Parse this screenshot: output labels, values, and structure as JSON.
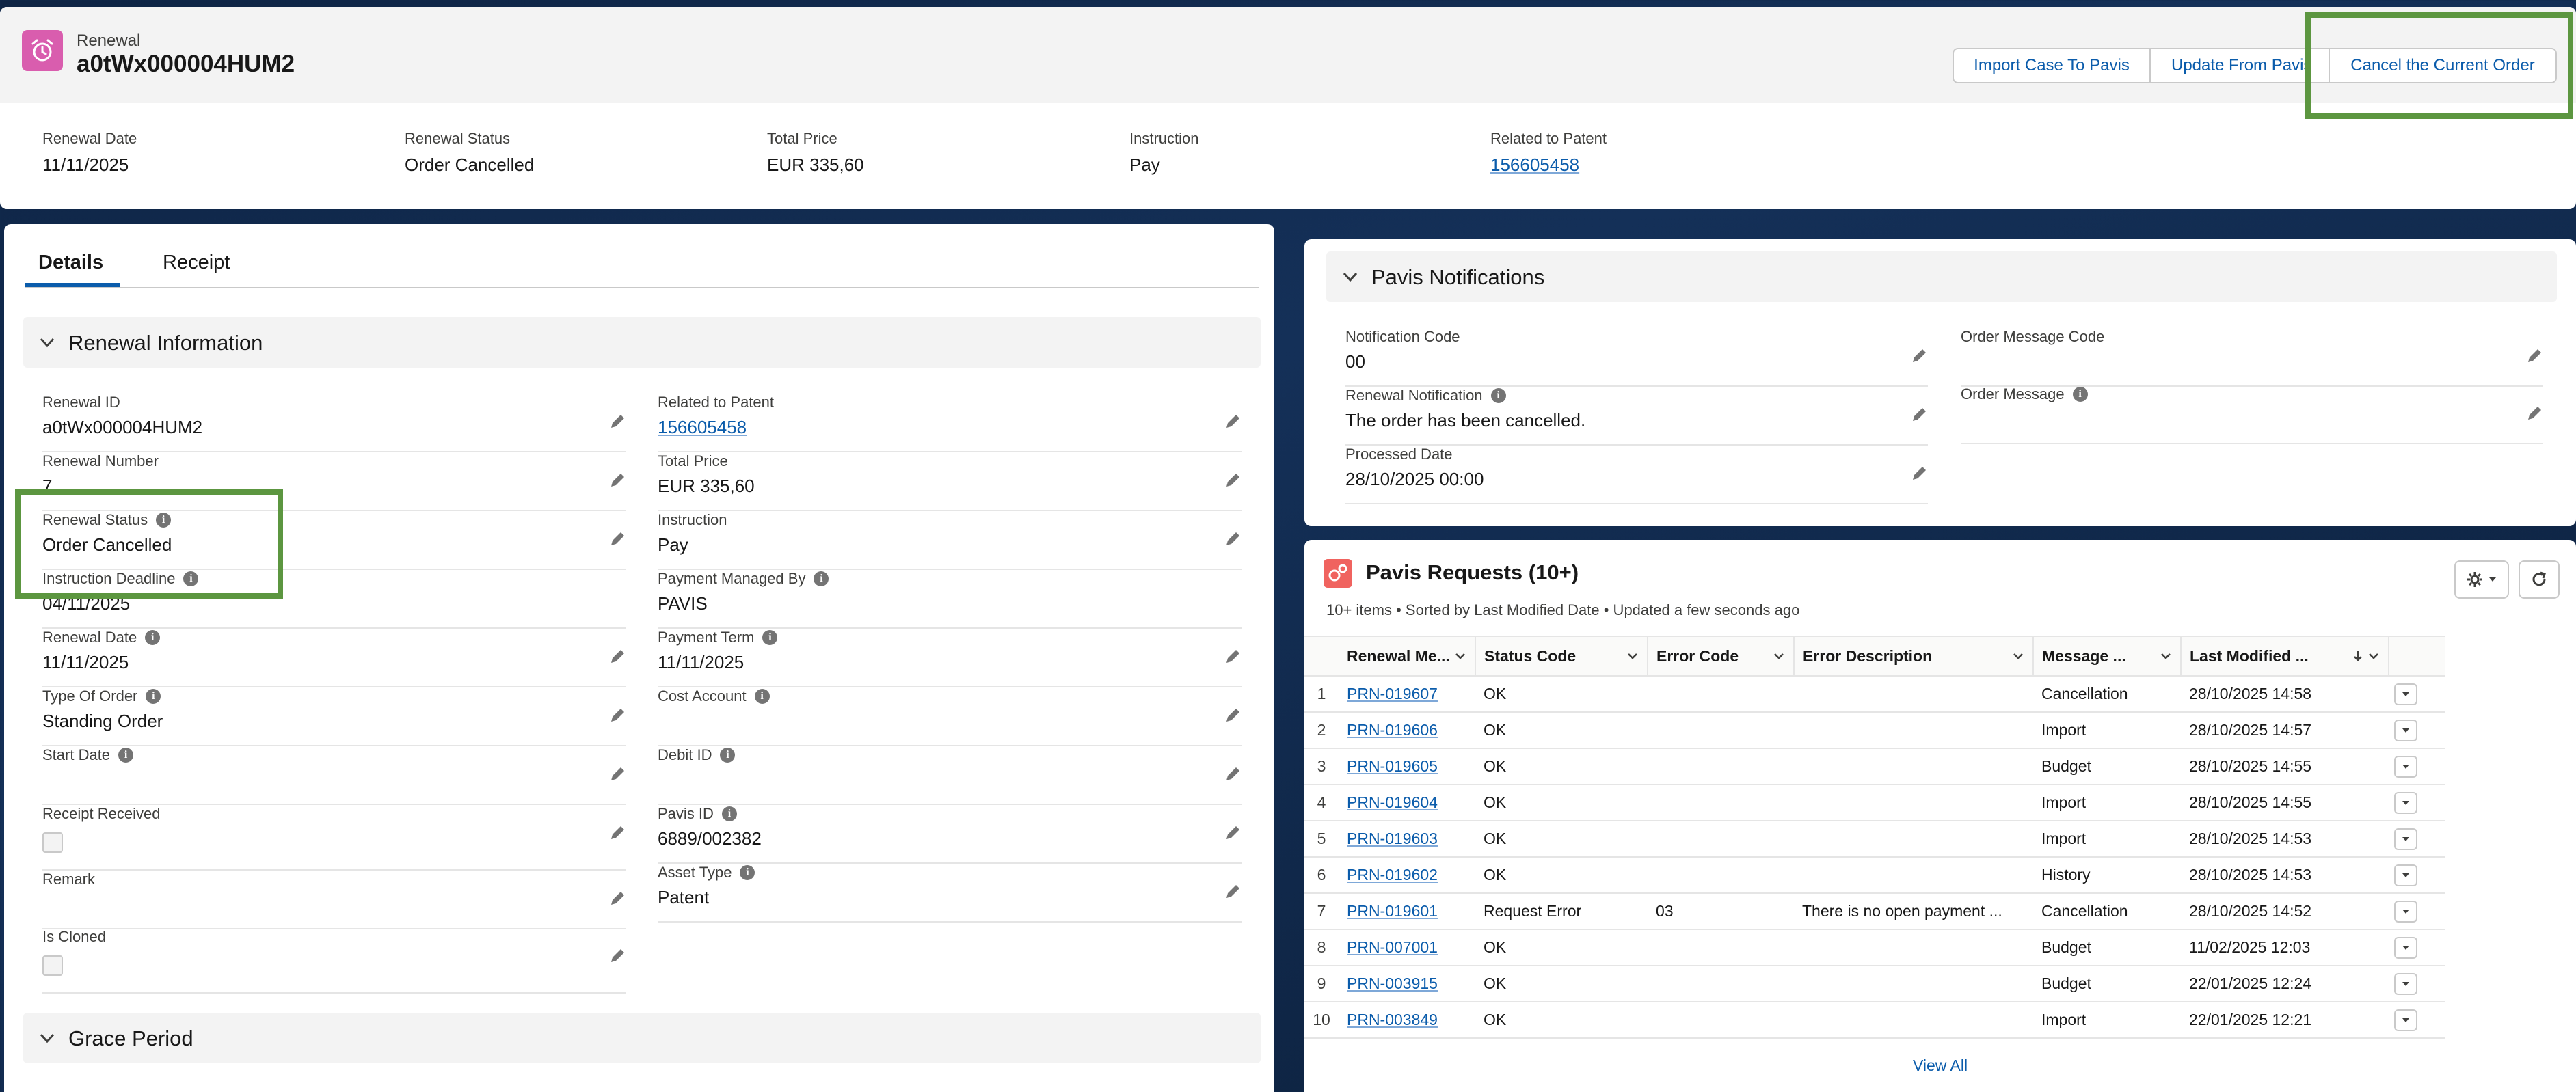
{
  "header": {
    "object_type": "Renewal",
    "record_name": "a0tWx000004HUM2",
    "buttons": [
      "Import Case To Pavis",
      "Update From Pavis",
      "Cancel the Current Order"
    ],
    "highlights": [
      {
        "label": "Renewal Date",
        "value": "11/11/2025"
      },
      {
        "label": "Renewal Status",
        "value": "Order Cancelled"
      },
      {
        "label": "Total Price",
        "value": "EUR 335,60"
      },
      {
        "label": "Instruction",
        "value": "Pay"
      },
      {
        "label": "Related to Patent",
        "value": "156605458"
      }
    ]
  },
  "tabs": [
    "Details",
    "Receipt"
  ],
  "renewal_info": {
    "title": "Renewal Information",
    "left_fields": [
      {
        "label": "Renewal ID",
        "value": "a0tWx000004HUM2"
      },
      {
        "label": "Renewal Number",
        "value": "7"
      },
      {
        "label": "Renewal Status",
        "value": "Order Cancelled"
      },
      {
        "label": "Instruction Deadline",
        "value": "04/11/2025"
      },
      {
        "label": "Renewal Date",
        "value": "11/11/2025"
      },
      {
        "label": "Type Of Order",
        "value": "Standing Order"
      },
      {
        "label": "Start Date",
        "value": ""
      },
      {
        "label": "Receipt Received",
        "value": ""
      },
      {
        "label": "Remark",
        "value": ""
      },
      {
        "label": "Is Cloned",
        "value": ""
      }
    ],
    "right_fields": [
      {
        "label": "Related to Patent",
        "value": "156605458"
      },
      {
        "label": "Total Price",
        "value": "EUR 335,60"
      },
      {
        "label": "Instruction",
        "value": "Pay"
      },
      {
        "label": "Payment Managed By",
        "value": "PAVIS"
      },
      {
        "label": "Payment Term",
        "value": "11/11/2025"
      },
      {
        "label": "Cost Account",
        "value": ""
      },
      {
        "label": "Debit ID",
        "value": ""
      },
      {
        "label": "Pavis ID",
        "value": "6889/002382"
      },
      {
        "label": "Asset Type",
        "value": "Patent"
      }
    ]
  },
  "grace_period": {
    "title": "Grace Period"
  },
  "notifications": {
    "title": "Pavis Notifications",
    "left_fields": [
      {
        "label": "Notification Code",
        "value": "00"
      },
      {
        "label": "Renewal Notification",
        "value": "The order has been cancelled."
      },
      {
        "label": "Processed Date",
        "value": "28/10/2025 00:00"
      }
    ],
    "right_fields": [
      {
        "label": "Order Message Code",
        "value": ""
      },
      {
        "label": "Order Message",
        "value": ""
      }
    ]
  },
  "requests": {
    "title": "Pavis Requests (10+)",
    "subtitle": "10+ items • Sorted by Last Modified Date • Updated a few seconds ago",
    "columns": [
      "Renewal Me...",
      "Status Code",
      "Error Code",
      "Error Description",
      "Message ...",
      "Last Modified ..."
    ],
    "rows": [
      {
        "n": "1",
        "id": "PRN-019607",
        "status": "OK",
        "error_code": "",
        "error_desc": "",
        "message": "Cancellation",
        "modified": "28/10/2025 14:58"
      },
      {
        "n": "2",
        "id": "PRN-019606",
        "status": "OK",
        "error_code": "",
        "error_desc": "",
        "message": "Import",
        "modified": "28/10/2025 14:57"
      },
      {
        "n": "3",
        "id": "PRN-019605",
        "status": "OK",
        "error_code": "",
        "error_desc": "",
        "message": "Budget",
        "modified": "28/10/2025 14:55"
      },
      {
        "n": "4",
        "id": "PRN-019604",
        "status": "OK",
        "error_code": "",
        "error_desc": "",
        "message": "Import",
        "modified": "28/10/2025 14:55"
      },
      {
        "n": "5",
        "id": "PRN-019603",
        "status": "OK",
        "error_code": "",
        "error_desc": "",
        "message": "Import",
        "modified": "28/10/2025 14:53"
      },
      {
        "n": "6",
        "id": "PRN-019602",
        "status": "OK",
        "error_code": "",
        "error_desc": "",
        "message": "History",
        "modified": "28/10/2025 14:53"
      },
      {
        "n": "7",
        "id": "PRN-019601",
        "status": "Request Error",
        "error_code": "03",
        "error_desc": "There is no open payment ...",
        "message": "Cancellation",
        "modified": "28/10/2025 14:52"
      },
      {
        "n": "8",
        "id": "PRN-007001",
        "status": "OK",
        "error_code": "",
        "error_desc": "",
        "message": "Budget",
        "modified": "11/02/2025 12:03"
      },
      {
        "n": "9",
        "id": "PRN-003915",
        "status": "OK",
        "error_code": "",
        "error_desc": "",
        "message": "Budget",
        "modified": "22/01/2025 12:24"
      },
      {
        "n": "10",
        "id": "PRN-003849",
        "status": "OK",
        "error_code": "",
        "error_desc": "",
        "message": "Import",
        "modified": "22/01/2025 12:21"
      }
    ],
    "view_all": "View All"
  },
  "colors": {
    "accent": "#0b5cab",
    "annotation": "#5c9640",
    "renewal_icon": "#d95dae",
    "requests_icon": "#f0635f"
  }
}
